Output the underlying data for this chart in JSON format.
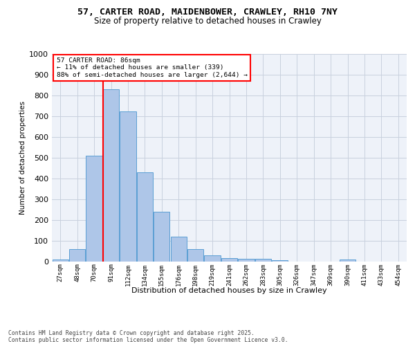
{
  "title_line1": "57, CARTER ROAD, MAIDENBOWER, CRAWLEY, RH10 7NY",
  "title_line2": "Size of property relative to detached houses in Crawley",
  "xlabel": "Distribution of detached houses by size in Crawley",
  "ylabel": "Number of detached properties",
  "footer_line1": "Contains HM Land Registry data © Crown copyright and database right 2025.",
  "footer_line2": "Contains public sector information licensed under the Open Government Licence v3.0.",
  "bar_labels": [
    "27sqm",
    "48sqm",
    "70sqm",
    "91sqm",
    "112sqm",
    "134sqm",
    "155sqm",
    "176sqm",
    "198sqm",
    "219sqm",
    "241sqm",
    "262sqm",
    "283sqm",
    "305sqm",
    "326sqm",
    "347sqm",
    "369sqm",
    "390sqm",
    "411sqm",
    "433sqm",
    "454sqm"
  ],
  "bar_values": [
    10,
    57,
    507,
    828,
    723,
    427,
    240,
    117,
    57,
    30,
    14,
    11,
    12,
    5,
    0,
    0,
    0,
    7,
    0,
    0,
    0
  ],
  "bar_color": "#aec6e8",
  "bar_edge_color": "#5a9fd4",
  "annotation_box_text": "57 CARTER ROAD: 86sqm\n← 11% of detached houses are smaller (339)\n88% of semi-detached houses are larger (2,644) →",
  "vline_color": "red",
  "ylim": [
    0,
    1000
  ],
  "yticks": [
    0,
    100,
    200,
    300,
    400,
    500,
    600,
    700,
    800,
    900,
    1000
  ],
  "bg_color": "#eef2f9",
  "grid_color": "#c8d0de",
  "title_fontsize": 9.5,
  "subtitle_fontsize": 8.5,
  "footer_fontsize": 5.8,
  "ylabel_fontsize": 7.5,
  "xlabel_fontsize": 8.0,
  "ytick_fontsize": 8.0,
  "xtick_fontsize": 6.5,
  "ann_fontsize": 6.8
}
